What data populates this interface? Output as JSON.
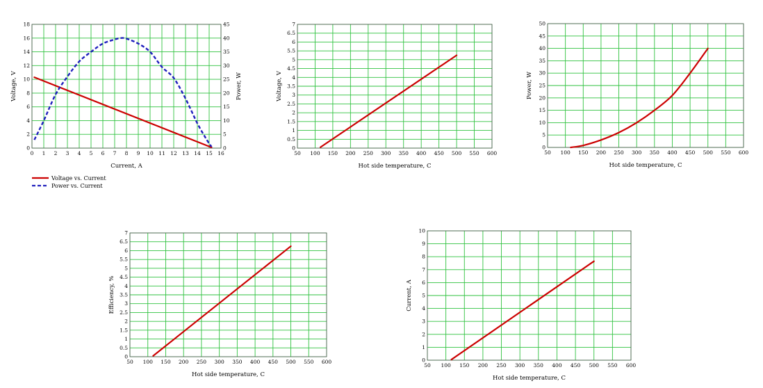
{
  "colors": {
    "grid": "#2fc23f",
    "series_red": "#cc0000",
    "series_blue": "#1f1fbd",
    "frame": "#555555"
  },
  "chart_data": [
    {
      "type": "line",
      "xlabel": "Current, A",
      "ylabel": "Voltage, V",
      "y2label": "Power, W",
      "xlim": [
        0,
        16
      ],
      "ylim": [
        0,
        18
      ],
      "y2lim": [
        0,
        45
      ],
      "xticks": [
        "0",
        "1",
        "2",
        "3",
        "4",
        "5",
        "6",
        "7",
        "8",
        "9",
        "10",
        "11",
        "12",
        "13",
        "14",
        "15",
        "16"
      ],
      "yticks": [
        "0",
        "2",
        "4",
        "6",
        "8",
        "10",
        "12",
        "14",
        "16",
        "18"
      ],
      "y2ticks": [
        "0",
        "5",
        "10",
        "15",
        "20",
        "25",
        "30",
        "35",
        "40",
        "45"
      ],
      "grid": true,
      "legend": {
        "position": "below-left",
        "entries": [
          "Voltage vs. Current",
          "Power vs. Current"
        ]
      },
      "series": [
        {
          "name": "Voltage vs. Current",
          "axis": "left",
          "style": "solid",
          "color": "#cc0000",
          "x": [
            0.2,
            15.2
          ],
          "y": [
            10.3,
            0.1
          ]
        },
        {
          "name": "Power vs. Current",
          "axis": "right",
          "style": "dashed",
          "color": "#1f1fbd",
          "x": [
            0.2,
            1,
            2,
            3,
            4,
            5,
            6,
            7,
            7.5,
            8,
            9,
            10,
            11,
            12,
            13,
            14,
            14.8,
            15.2
          ],
          "y": [
            3,
            10,
            19.5,
            26,
            31.5,
            35,
            38,
            39.5,
            40,
            39.8,
            38,
            35,
            29.5,
            25.5,
            18,
            9,
            3,
            0.5
          ]
        }
      ]
    },
    {
      "type": "line",
      "xlabel": "Hot side temperature, C",
      "ylabel": "Voltage, V",
      "xlim": [
        50,
        600
      ],
      "ylim": [
        0,
        7
      ],
      "xticks": [
        "50",
        "100",
        "150",
        "200",
        "250",
        "300",
        "350",
        "400",
        "450",
        "500",
        "550",
        "600"
      ],
      "yticks": [
        "0",
        "0.5",
        "1",
        "1.5",
        "2",
        "2.5",
        "3",
        "3.5",
        "4",
        "4.5",
        "5",
        "5.5",
        "6",
        "6.5",
        "7"
      ],
      "grid": true,
      "series": [
        {
          "x": [
            115,
            500
          ],
          "y": [
            0.05,
            5.25
          ]
        }
      ]
    },
    {
      "type": "line",
      "xlabel": "Hot side temperature, C",
      "ylabel": "Power, W",
      "xlim": [
        50,
        600
      ],
      "ylim": [
        0,
        50
      ],
      "xticks": [
        "50",
        "100",
        "150",
        "200",
        "250",
        "300",
        "350",
        "400",
        "450",
        "500",
        "550",
        "600"
      ],
      "yticks": [
        "0",
        "5",
        "10",
        "15",
        "20",
        "25",
        "30",
        "35",
        "40",
        "45",
        "50"
      ],
      "grid": true,
      "series": [
        {
          "x": [
            115,
            150,
            200,
            250,
            300,
            350,
            400,
            450,
            500
          ],
          "y": [
            0,
            0.8,
            3,
            6,
            10,
            15,
            21,
            30,
            40
          ]
        }
      ]
    },
    {
      "type": "line",
      "xlabel": "Hot side temperature, C",
      "ylabel": "Efficiency, %",
      "xlim": [
        50,
        600
      ],
      "ylim": [
        0,
        7
      ],
      "xticks": [
        "50",
        "100",
        "150",
        "200",
        "250",
        "300",
        "350",
        "400",
        "450",
        "500",
        "550",
        "600"
      ],
      "yticks": [
        "0",
        "0.5",
        "1",
        "1.5",
        "2",
        "2.5",
        "3",
        "3.5",
        "4",
        "4.5",
        "5",
        "5.5",
        "6",
        "6.5",
        "7"
      ],
      "grid": true,
      "series": [
        {
          "x": [
            115,
            500
          ],
          "y": [
            0.05,
            6.25
          ]
        }
      ]
    },
    {
      "type": "line",
      "xlabel": "Hot side temperature, C",
      "ylabel": "Current, A",
      "xlim": [
        50,
        600
      ],
      "ylim": [
        0,
        10
      ],
      "xticks": [
        "50",
        "100",
        "150",
        "200",
        "250",
        "300",
        "350",
        "400",
        "450",
        "500",
        "550",
        "600"
      ],
      "yticks": [
        "0",
        "1",
        "2",
        "3",
        "4",
        "5",
        "6",
        "7",
        "8",
        "9",
        "10"
      ],
      "grid": true,
      "series": [
        {
          "x": [
            115,
            500
          ],
          "y": [
            0.05,
            7.65
          ]
        }
      ]
    }
  ]
}
